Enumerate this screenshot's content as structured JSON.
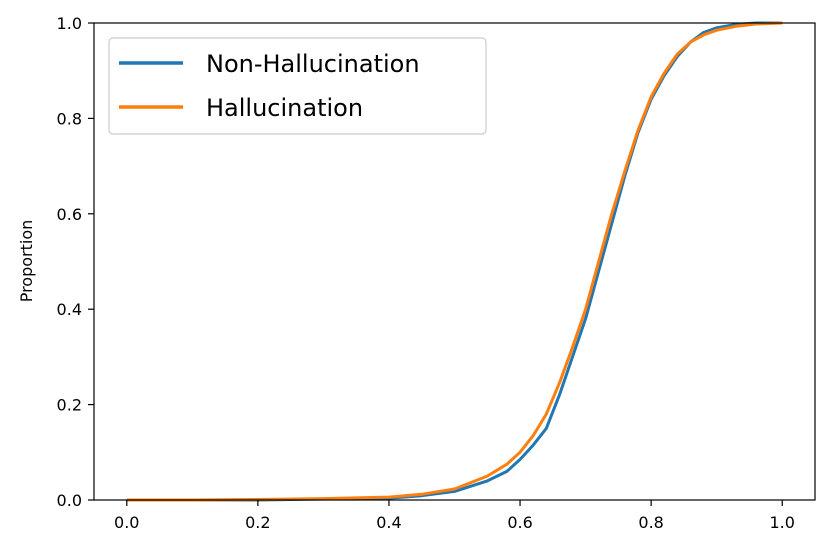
{
  "chart_data": {
    "type": "line",
    "title": "",
    "xlabel": "",
    "ylabel": "Proportion",
    "xlim": [
      -0.05,
      1.05
    ],
    "ylim": [
      0,
      1
    ],
    "xticks": [
      "0.0",
      "0.2",
      "0.4",
      "0.6",
      "0.8",
      "1.0"
    ],
    "yticks": [
      "0.0",
      "0.2",
      "0.4",
      "0.6",
      "0.8",
      "1.0"
    ],
    "grid": false,
    "legend_position": "top-left",
    "series": [
      {
        "name": "Non-Hallucination",
        "color": "#1f77b4",
        "x": [
          0.0,
          0.1,
          0.2,
          0.3,
          0.4,
          0.45,
          0.5,
          0.55,
          0.58,
          0.6,
          0.62,
          0.64,
          0.66,
          0.68,
          0.7,
          0.72,
          0.74,
          0.76,
          0.78,
          0.8,
          0.82,
          0.84,
          0.86,
          0.88,
          0.9,
          0.93,
          0.96,
          1.0
        ],
        "y": [
          0.0,
          0.0,
          0.0,
          0.002,
          0.004,
          0.009,
          0.018,
          0.04,
          0.06,
          0.085,
          0.115,
          0.15,
          0.22,
          0.3,
          0.38,
          0.48,
          0.58,
          0.68,
          0.77,
          0.84,
          0.89,
          0.93,
          0.96,
          0.98,
          0.99,
          0.997,
          1.0,
          1.0
        ]
      },
      {
        "name": "Hallucination",
        "color": "#ff7f0e",
        "x": [
          0.0,
          0.1,
          0.2,
          0.3,
          0.4,
          0.45,
          0.5,
          0.55,
          0.58,
          0.6,
          0.62,
          0.64,
          0.66,
          0.68,
          0.7,
          0.72,
          0.74,
          0.76,
          0.78,
          0.8,
          0.82,
          0.84,
          0.86,
          0.88,
          0.9,
          0.93,
          0.96,
          1.0
        ],
        "y": [
          0.0,
          0.0,
          0.001,
          0.003,
          0.006,
          0.012,
          0.023,
          0.05,
          0.075,
          0.1,
          0.135,
          0.18,
          0.245,
          0.32,
          0.4,
          0.5,
          0.6,
          0.69,
          0.775,
          0.845,
          0.895,
          0.935,
          0.96,
          0.975,
          0.985,
          0.993,
          0.998,
          1.0
        ]
      }
    ]
  }
}
